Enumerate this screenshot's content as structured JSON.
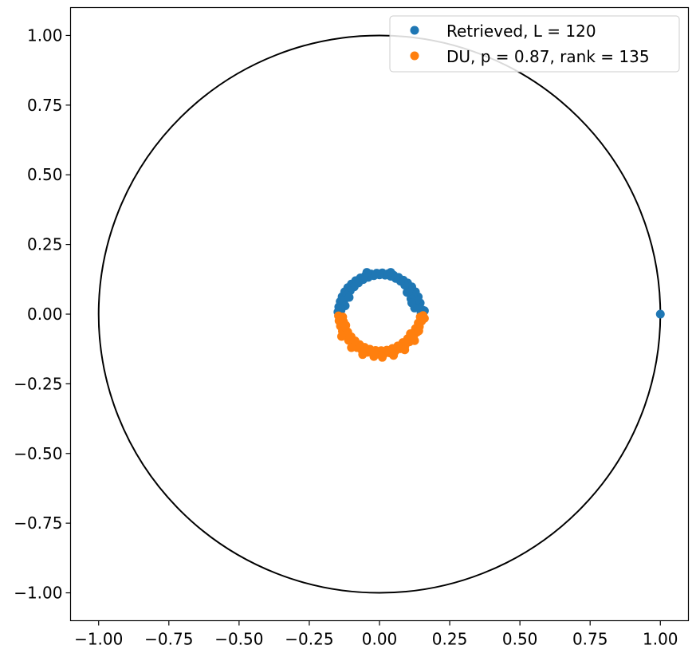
{
  "chart_data": {
    "type": "scatter",
    "title": "",
    "xlabel": "",
    "ylabel": "",
    "xlim": [
      -1.1,
      1.1
    ],
    "ylim": [
      -1.1,
      1.1
    ],
    "grid": false,
    "legend_position": "top-right",
    "x_ticks": [
      -1.0,
      -0.75,
      -0.5,
      -0.25,
      0.0,
      0.25,
      0.5,
      0.75,
      1.0
    ],
    "y_ticks": [
      1.0,
      0.75,
      0.5,
      0.25,
      0.0,
      -0.25,
      -0.5,
      -0.75,
      -1.0
    ],
    "x_tick_labels": [
      "−1.00",
      "−0.75",
      "−0.50",
      "−0.25",
      "0.00",
      "0.25",
      "0.50",
      "0.75",
      "1.00"
    ],
    "y_tick_labels": [
      "1.00",
      "0.75",
      "0.50",
      "0.25",
      "0.00",
      "−0.25",
      "−0.50",
      "−0.75",
      "−1.00"
    ],
    "unit_circle": {
      "radius": 1.0,
      "color": "#000000"
    },
    "series": [
      {
        "name": "Retrieved, L = 120",
        "color": "#1f77b4",
        "points": [
          [
            1.0,
            0.0
          ],
          [
            0.153,
            0.015
          ],
          [
            0.145,
            0.04
          ],
          [
            0.138,
            0.062
          ],
          [
            0.128,
            0.08
          ],
          [
            0.115,
            0.098
          ],
          [
            0.1,
            0.112
          ],
          [
            0.085,
            0.122
          ],
          [
            0.068,
            0.132
          ],
          [
            0.05,
            0.14
          ],
          [
            0.03,
            0.145
          ],
          [
            0.01,
            0.148
          ],
          [
            -0.01,
            0.147
          ],
          [
            -0.03,
            0.144
          ],
          [
            -0.05,
            0.138
          ],
          [
            -0.068,
            0.13
          ],
          [
            -0.085,
            0.12
          ],
          [
            -0.1,
            0.108
          ],
          [
            -0.113,
            0.095
          ],
          [
            -0.124,
            0.08
          ],
          [
            -0.133,
            0.063
          ],
          [
            -0.14,
            0.045
          ],
          [
            -0.145,
            0.026
          ],
          [
            -0.148,
            0.008
          ],
          [
            0.148,
            0.005
          ],
          [
            0.14,
            0.028
          ],
          [
            0.132,
            0.05
          ],
          [
            0.12,
            0.07
          ],
          [
            0.105,
            0.088
          ],
          [
            0.09,
            0.104
          ],
          [
            0.075,
            0.118
          ],
          [
            0.058,
            0.128
          ],
          [
            0.04,
            0.136
          ],
          [
            0.02,
            0.14
          ],
          [
            0.0,
            0.141
          ],
          [
            -0.02,
            0.138
          ],
          [
            -0.04,
            0.132
          ],
          [
            -0.058,
            0.124
          ],
          [
            -0.075,
            0.112
          ],
          [
            -0.09,
            0.098
          ],
          [
            -0.104,
            0.084
          ],
          [
            -0.116,
            0.068
          ],
          [
            -0.126,
            0.05
          ],
          [
            -0.133,
            0.032
          ],
          [
            -0.137,
            0.014
          ],
          [
            0.125,
            0.022
          ],
          [
            0.112,
            0.055
          ],
          [
            0.098,
            0.078
          ],
          [
            -0.108,
            0.06
          ],
          [
            -0.122,
            0.03
          ],
          [
            0.04,
            0.15
          ],
          [
            -0.045,
            0.15
          ],
          [
            0.16,
            0.012
          ],
          [
            0.115,
            0.04
          ],
          [
            -0.14,
            0.02
          ]
        ]
      },
      {
        "name": "DU, p = 0.87, rank = 135",
        "color": "#ff7f0e",
        "points": [
          [
            0.155,
            -0.005
          ],
          [
            0.15,
            -0.025
          ],
          [
            0.142,
            -0.045
          ],
          [
            0.133,
            -0.065
          ],
          [
            0.121,
            -0.083
          ],
          [
            0.107,
            -0.099
          ],
          [
            0.091,
            -0.113
          ],
          [
            0.074,
            -0.124
          ],
          [
            0.056,
            -0.133
          ],
          [
            0.037,
            -0.139
          ],
          [
            0.017,
            -0.142
          ],
          [
            -0.003,
            -0.143
          ],
          [
            -0.023,
            -0.141
          ],
          [
            -0.043,
            -0.137
          ],
          [
            -0.062,
            -0.13
          ],
          [
            -0.08,
            -0.12
          ],
          [
            -0.096,
            -0.108
          ],
          [
            -0.11,
            -0.094
          ],
          [
            -0.122,
            -0.078
          ],
          [
            -0.132,
            -0.061
          ],
          [
            -0.139,
            -0.043
          ],
          [
            -0.144,
            -0.024
          ],
          [
            -0.146,
            -0.006
          ],
          [
            0.145,
            -0.01
          ],
          [
            0.138,
            -0.032
          ],
          [
            0.128,
            -0.052
          ],
          [
            0.115,
            -0.07
          ],
          [
            0.1,
            -0.088
          ],
          [
            0.083,
            -0.102
          ],
          [
            0.065,
            -0.114
          ],
          [
            0.046,
            -0.123
          ],
          [
            0.026,
            -0.129
          ],
          [
            0.006,
            -0.131
          ],
          [
            -0.014,
            -0.13
          ],
          [
            -0.034,
            -0.126
          ],
          [
            -0.053,
            -0.119
          ],
          [
            -0.071,
            -0.109
          ],
          [
            -0.087,
            -0.096
          ],
          [
            -0.101,
            -0.081
          ],
          [
            -0.113,
            -0.064
          ],
          [
            -0.122,
            -0.046
          ],
          [
            -0.128,
            -0.027
          ],
          [
            -0.131,
            -0.01
          ],
          [
            0.16,
            -0.015
          ],
          [
            0.125,
            -0.095
          ],
          [
            0.09,
            -0.128
          ],
          [
            -0.02,
            -0.152
          ],
          [
            -0.06,
            -0.145
          ],
          [
            -0.1,
            -0.12
          ],
          [
            -0.135,
            -0.08
          ],
          [
            0.01,
            -0.155
          ],
          [
            0.05,
            -0.148
          ],
          [
            0.11,
            -0.07
          ],
          [
            -0.12,
            -0.04
          ],
          [
            0.14,
            -0.06
          ]
        ]
      }
    ]
  }
}
